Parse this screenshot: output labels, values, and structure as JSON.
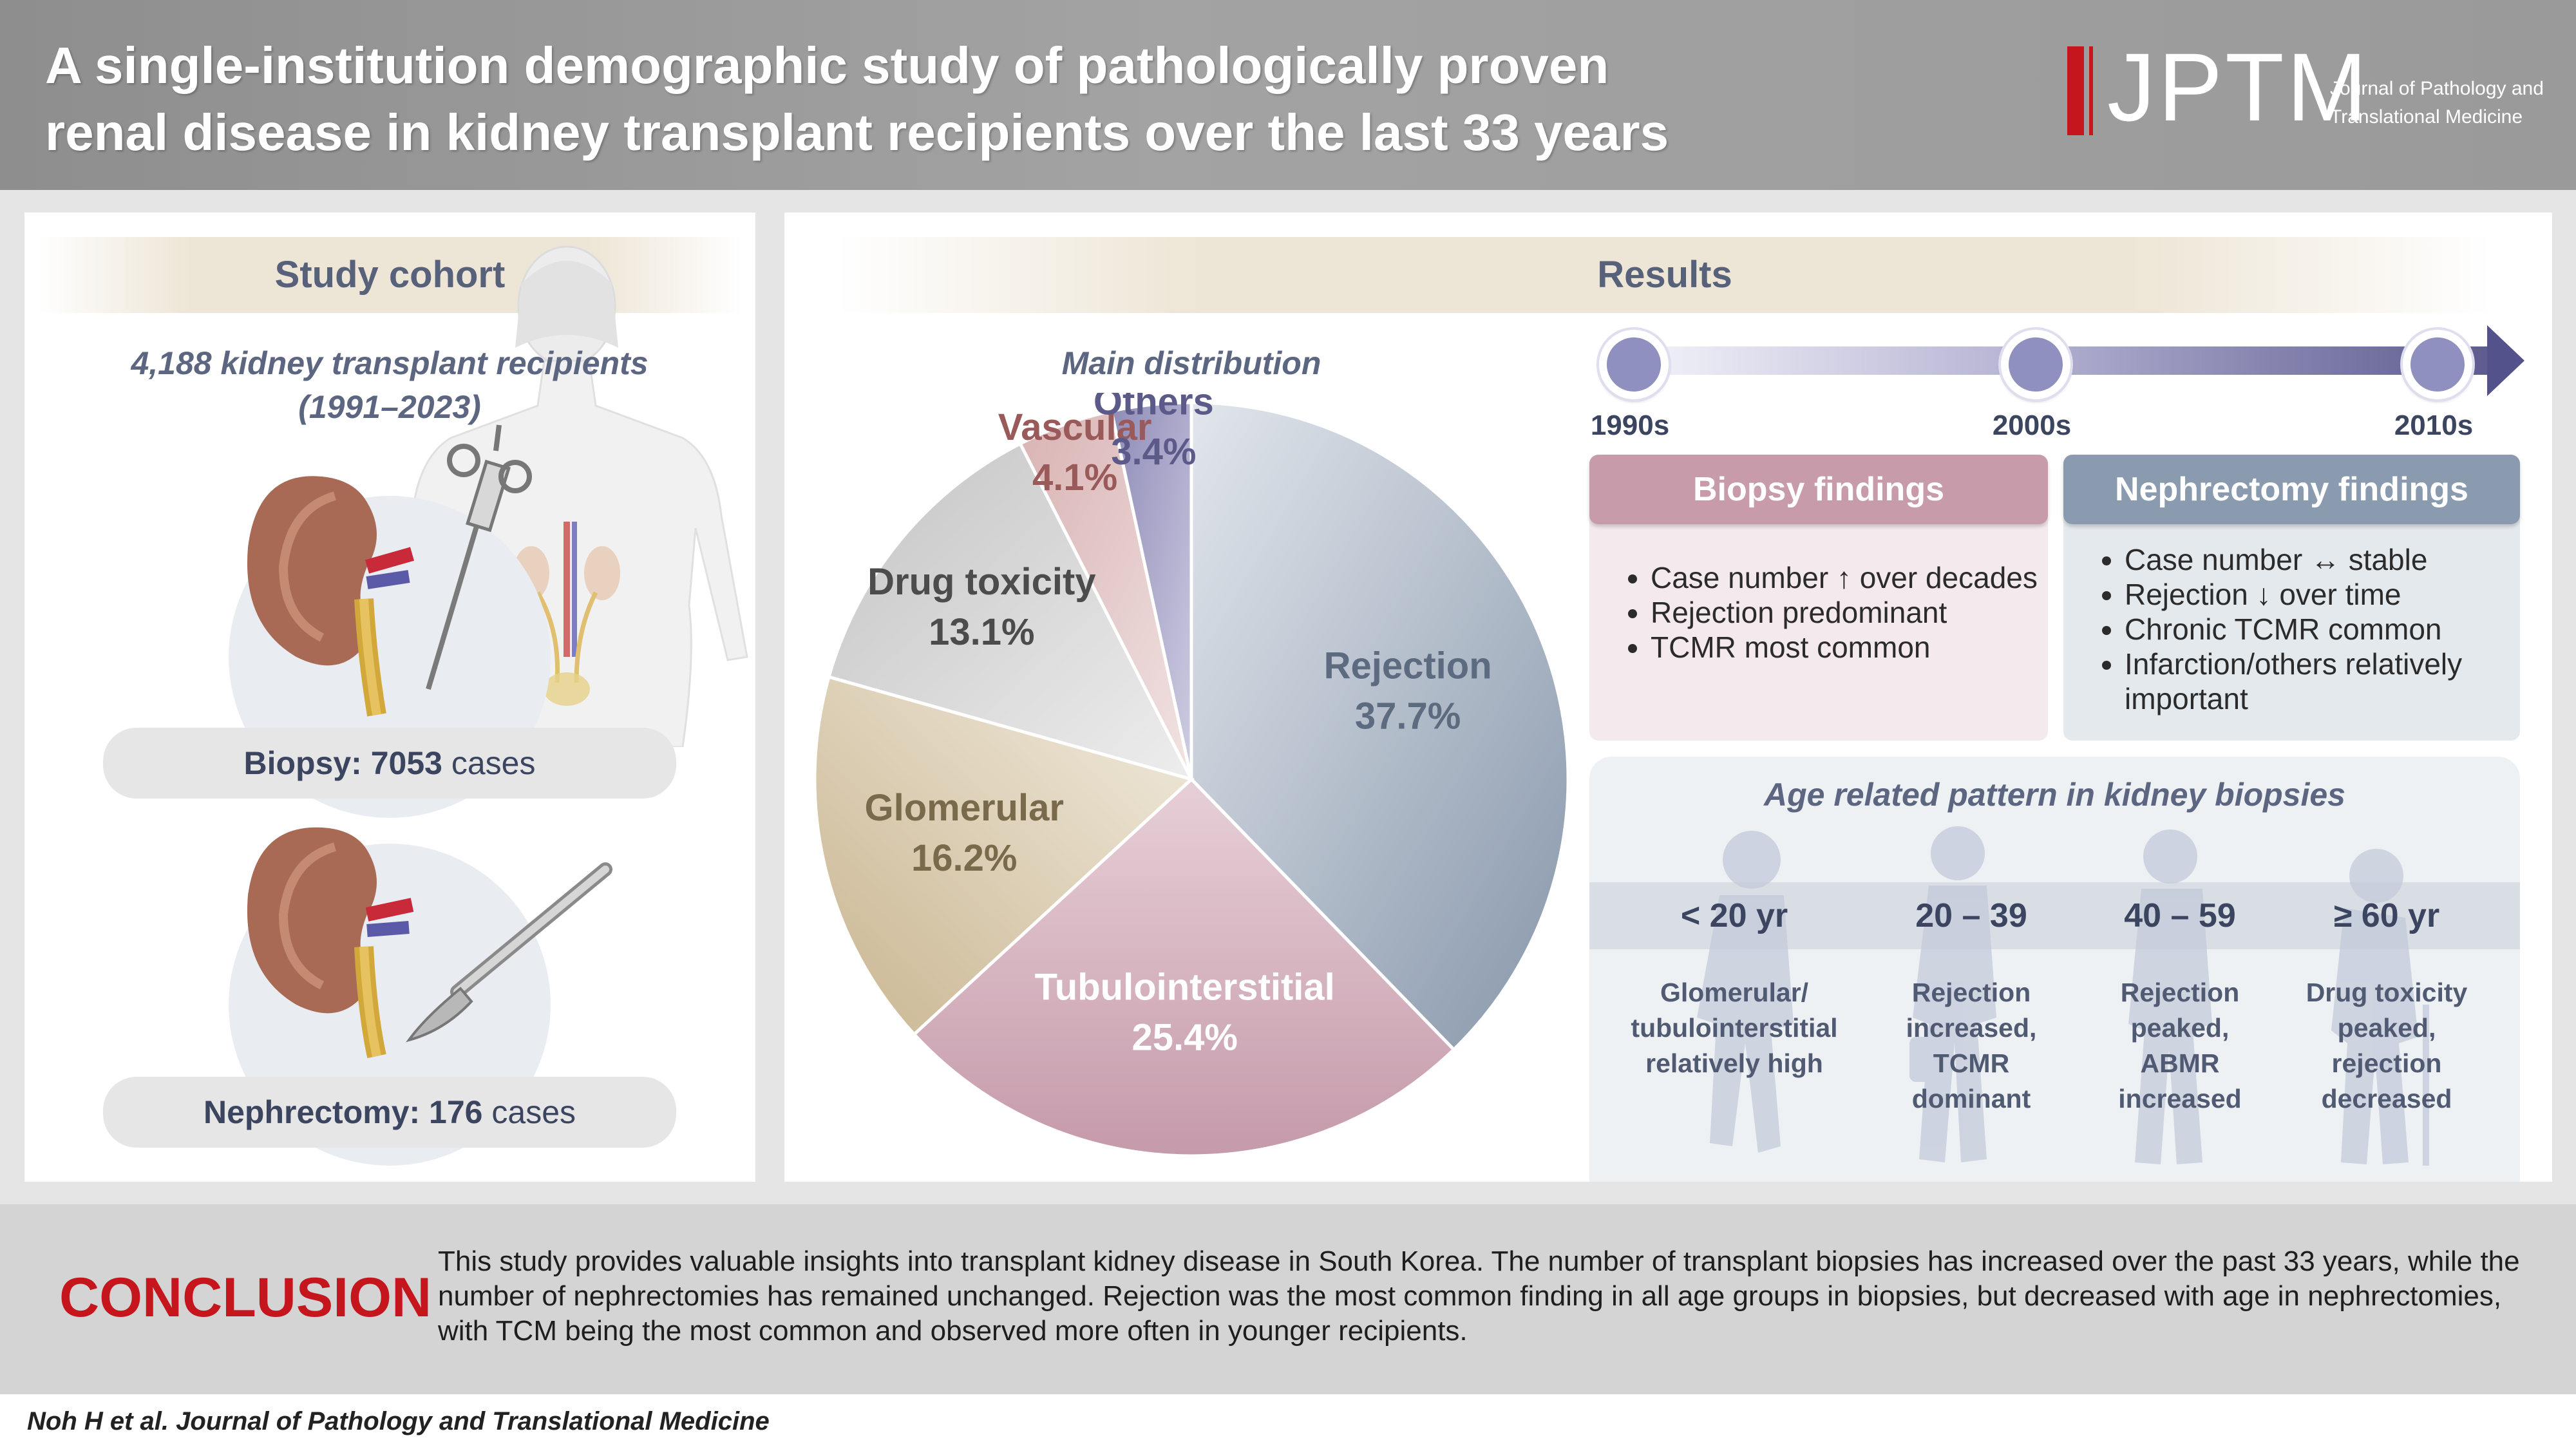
{
  "header": {
    "title_line1": "A single-institution demographic study of pathologically proven",
    "title_line2": "renal disease in kidney transplant recipients over the last 33 years",
    "logo_text": "JPTM",
    "logo_sub_line1": "Journal of Pathology and",
    "logo_sub_line2": "Translational Medicine"
  },
  "cohort": {
    "section_title": "Study cohort",
    "recipients_line1": "4,188 kidney transplant recipients",
    "recipients_line2": "(1991–2023)",
    "biopsy_label": "Biopsy: 7053",
    "biopsy_unit": "cases",
    "nephrectomy_label": "Nephrectomy: 176",
    "nephrectomy_unit": "cases"
  },
  "results": {
    "section_title": "Results",
    "distribution_title": "Main distribution",
    "timeline": [
      "1990s",
      "2000s",
      "2010s"
    ],
    "biopsy_findings": {
      "title": "Biopsy findings",
      "items": [
        "Case number ↑ over decades",
        "Rejection predominant",
        "TCMR most common"
      ]
    },
    "nephrectomy_findings": {
      "title": "Nephrectomy findings",
      "items": [
        "Case number ↔ stable",
        "Rejection ↓ over time",
        "Chronic TCMR common",
        "Infarction/others relatively important"
      ]
    },
    "age_pattern": {
      "title": "Age related pattern in kidney biopsies",
      "groups": [
        {
          "label": "< 20 yr",
          "desc_line1": "Glomerular/",
          "desc_line2": "tubulointerstitial",
          "desc_line3": "relatively high",
          "desc_line4": ""
        },
        {
          "label": "20 – 39",
          "desc_line1": "Rejection",
          "desc_line2": "increased,",
          "desc_line3": "TCMR",
          "desc_line4": "dominant"
        },
        {
          "label": "40 – 59",
          "desc_line1": "Rejection",
          "desc_line2": "peaked,",
          "desc_line3": "ABMR",
          "desc_line4": "increased"
        },
        {
          "label": "≥ 60 yr",
          "desc_line1": "Drug toxicity",
          "desc_line2": "peaked,",
          "desc_line3": "rejection",
          "desc_line4": "decreased"
        }
      ]
    }
  },
  "chart_data": {
    "type": "pie",
    "title": "Main distribution",
    "slices": [
      {
        "name": "Rejection",
        "label": "37.7%",
        "value": 37.7,
        "color": "#9aa7b7",
        "text_color": "#5d6b80"
      },
      {
        "name": "Tubulointerstitial",
        "label": "25.4%",
        "value": 25.4,
        "color": "#c9a2b0",
        "text_color": "#ffffff"
      },
      {
        "name": "Glomerular",
        "label": "16.2%",
        "value": 16.2,
        "color": "#d8cbb0",
        "text_color": "#7a6a4c"
      },
      {
        "name": "Drug toxicity",
        "label": "13.1%",
        "value": 13.1,
        "color": "#d2d2d2",
        "text_color": "#4c4c4c"
      },
      {
        "name": "Vascular",
        "label": "4.1%",
        "value": 4.1,
        "color": "#e3c7c7",
        "text_color": "#9a5a5a"
      },
      {
        "name": "Others",
        "label": "3.4%",
        "value": 3.4,
        "color": "#a8a6c6",
        "text_color": "#5c5a88"
      }
    ]
  },
  "conclusion": {
    "heading": "CONCLUSION",
    "text": "This study provides valuable insights into transplant kidney disease in South Korea. The number of transplant biopsies has increased over the past 33 years, while the number of nephrectomies has remained unchanged. Rejection was the most common finding in all age groups in biopsies, but decreased with age in nephrectomies, with TCM being the most common and observed more often in younger recipients."
  },
  "footer": {
    "citation": "Noh H et al. Journal of Pathology and Translational Medicine"
  },
  "colors": {
    "accent_red": "#c4161c",
    "biopsy_header": "#c79ba9",
    "nephrectomy_header": "#8a9bb0",
    "timeline_node": "#8f8fc0"
  }
}
